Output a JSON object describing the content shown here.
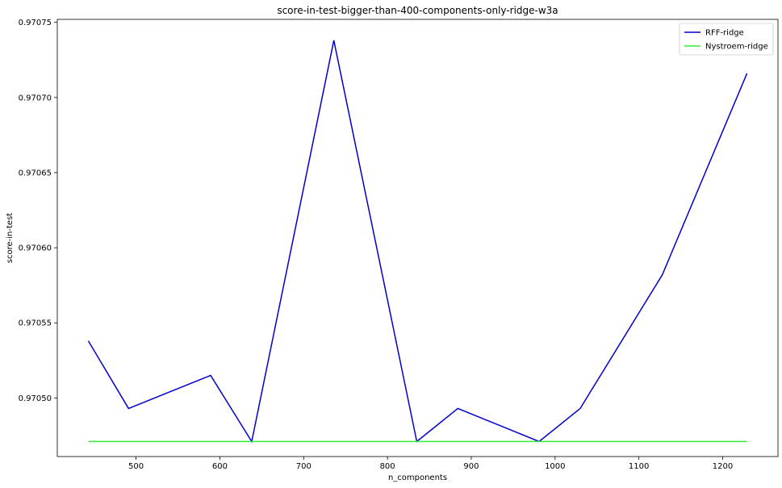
{
  "chart_data": {
    "type": "line",
    "title": "score-in-test-bigger-than-400-components-only-ridge-w3a",
    "xlabel": "n_components",
    "ylabel": "score-in-test",
    "xlim": [
      406,
      1266
    ],
    "ylim": [
      0.970461,
      0.970752
    ],
    "xticks": [
      500,
      600,
      700,
      800,
      900,
      1000,
      1100,
      1200
    ],
    "yticks": [
      0.9705,
      0.97055,
      0.9706,
      0.97065,
      0.9707,
      0.97075
    ],
    "ytick_labels": [
      "0.97050",
      "0.97055",
      "0.97060",
      "0.97065",
      "0.97070",
      "0.97075"
    ],
    "grid": false,
    "legend_position": "top-right",
    "series": [
      {
        "name": "RFF-ridge",
        "color": "#0000cc",
        "x": [
          443,
          491,
          589,
          638,
          736,
          835,
          884,
          981,
          1030,
          1128,
          1229
        ],
        "y": [
          0.970538,
          0.970493,
          0.970515,
          0.970471,
          0.970738,
          0.970471,
          0.970493,
          0.970471,
          0.970493,
          0.970582,
          0.970716
        ]
      },
      {
        "name": "Nystroem-ridge",
        "color": "#33ee33",
        "x": [
          443,
          1229
        ],
        "y": [
          0.970471,
          0.970471
        ]
      }
    ]
  }
}
